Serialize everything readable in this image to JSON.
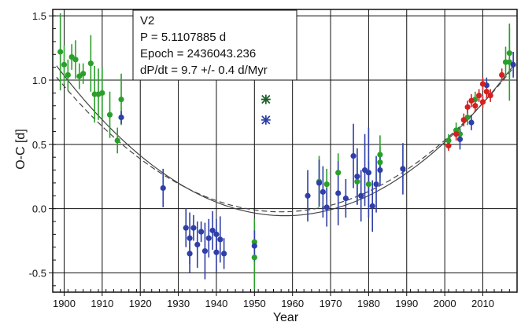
{
  "chart_data": {
    "type": "scatter",
    "title": "",
    "xlabel": "Year",
    "ylabel": "O-C [d]",
    "xlim": [
      1897,
      2019
    ],
    "ylim": [
      -0.65,
      1.55
    ],
    "grid": true,
    "x_ticks": [
      1900,
      1910,
      1920,
      1930,
      1940,
      1950,
      1960,
      1970,
      1980,
      1990,
      2000,
      2010
    ],
    "y_ticks": [
      -0.5,
      0.0,
      0.5,
      1.0,
      1.5
    ],
    "y_tick_labels": [
      "-0.5",
      "0.0",
      "0.5",
      "1.0",
      "1.5"
    ],
    "info_box": {
      "lines": [
        "V2",
        "P = 5.1107885 d",
        "Epoch = 2436043.236",
        "dP/dt = 9.7 +/- 0.4 d/Myr"
      ]
    },
    "colors": {
      "green": "#2aa02a",
      "blue": "#2f3fa8",
      "red": "#d42020",
      "dark_green": "#1d5e2a",
      "grid": "#111111",
      "fit": "#444444"
    },
    "fits": [
      {
        "style": "solid",
        "vertex_x": 1958,
        "vertex_y": -0.055,
        "curvature": 0.000324
      },
      {
        "style": "dashed",
        "vertex_x": 1957,
        "vertex_y": -0.025,
        "curvature": 0.000301
      }
    ],
    "series": [
      {
        "color": "green",
        "points": [
          {
            "x": 1899,
            "y": 1.22,
            "err": 0.3
          },
          {
            "x": 1900,
            "y": 1.12,
            "err": 0.15
          },
          {
            "x": 1901,
            "y": 1.04,
            "err": 0.12
          },
          {
            "x": 1902,
            "y": 1.18,
            "err": 0.1
          },
          {
            "x": 1903,
            "y": 1.16,
            "err": 0.15
          },
          {
            "x": 1904,
            "y": 1.03,
            "err": 0.1
          },
          {
            "x": 1905,
            "y": 1.05,
            "err": 0.08
          },
          {
            "x": 1907,
            "y": 1.13,
            "err": 0.22
          },
          {
            "x": 1908,
            "y": 0.89,
            "err": 0.22
          },
          {
            "x": 1909,
            "y": 0.89,
            "err": 0.2
          },
          {
            "x": 1910,
            "y": 0.9,
            "err": 0.2
          },
          {
            "x": 1912,
            "y": 0.73,
            "err": 0.18
          },
          {
            "x": 1914,
            "y": 0.53,
            "err": 0.1
          },
          {
            "x": 1915,
            "y": 0.85,
            "err": 0.2
          },
          {
            "x": 1950,
            "y": -0.26,
            "err": 0.18
          },
          {
            "x": 1950,
            "y": -0.38,
            "err": 0.25
          },
          {
            "x": 1967,
            "y": 0.21,
            "err": 0.2
          },
          {
            "x": 1969,
            "y": 0.19,
            "err": 0.12
          },
          {
            "x": 1972,
            "y": 0.28,
            "err": 0.15
          },
          {
            "x": 1977,
            "y": 0.21,
            "err": 0.18
          },
          {
            "x": 1980,
            "y": 0.19,
            "err": 0.18
          },
          {
            "x": 1983,
            "y": 0.42,
            "err": 0.15
          },
          {
            "x": 1983,
            "y": 0.36,
            "err": 0.12
          },
          {
            "x": 2001,
            "y": 0.53,
            "err": 0.05
          },
          {
            "x": 2003,
            "y": 0.61,
            "err": 0.06
          },
          {
            "x": 2004,
            "y": 0.58,
            "err": 0.06
          },
          {
            "x": 2006,
            "y": 0.71,
            "err": 0.06
          },
          {
            "x": 2008,
            "y": 0.85,
            "err": 0.06
          },
          {
            "x": 2016,
            "y": 1.14,
            "err": 0.12
          },
          {
            "x": 2017,
            "y": 1.21,
            "err": 0.2
          },
          {
            "x": 2017,
            "y": 1.14,
            "err": 0.3
          }
        ]
      },
      {
        "color": "blue",
        "points": [
          {
            "x": 1915,
            "y": 0.71,
            "err": 0.05
          },
          {
            "x": 1926,
            "y": 0.16,
            "err": 0.15
          },
          {
            "x": 1932,
            "y": -0.15,
            "err": 0.15
          },
          {
            "x": 1933,
            "y": -0.35,
            "err": 0.15
          },
          {
            "x": 1933,
            "y": -0.23,
            "err": 0.2
          },
          {
            "x": 1934,
            "y": -0.15,
            "err": 0.1
          },
          {
            "x": 1935,
            "y": -0.28,
            "err": 0.18
          },
          {
            "x": 1936,
            "y": -0.18,
            "err": 0.08
          },
          {
            "x": 1937,
            "y": -0.33,
            "err": 0.22
          },
          {
            "x": 1938,
            "y": -0.23,
            "err": 0.15
          },
          {
            "x": 1939,
            "y": -0.17,
            "err": 0.15
          },
          {
            "x": 1940,
            "y": -0.2,
            "err": 0.12
          },
          {
            "x": 1940,
            "y": -0.34,
            "err": 0.15
          },
          {
            "x": 1941,
            "y": -0.24,
            "err": 0.18
          },
          {
            "x": 1942,
            "y": -0.35,
            "err": 0.12
          },
          {
            "x": 1950,
            "y": -0.29,
            "err": 0.12
          },
          {
            "x": 1964,
            "y": 0.1,
            "err": 0.2
          },
          {
            "x": 1967,
            "y": 0.2,
            "err": 0.18
          },
          {
            "x": 1968,
            "y": 0.13,
            "err": 0.2
          },
          {
            "x": 1969,
            "y": 0.01,
            "err": 0.15
          },
          {
            "x": 1972,
            "y": 0.12,
            "err": 0.25
          },
          {
            "x": 1974,
            "y": 0.08,
            "err": 0.15
          },
          {
            "x": 1976,
            "y": 0.41,
            "err": 0.25
          },
          {
            "x": 1977,
            "y": 0.25,
            "err": 0.22
          },
          {
            "x": 1978,
            "y": 0.1,
            "err": 0.2
          },
          {
            "x": 1979,
            "y": 0.3,
            "err": 0.28
          },
          {
            "x": 1980,
            "y": 0.28,
            "err": 0.35
          },
          {
            "x": 1981,
            "y": 0.02,
            "err": 0.2
          },
          {
            "x": 1982,
            "y": 0.19,
            "err": 0.22
          },
          {
            "x": 1983,
            "y": 0.3,
            "err": 0.12
          },
          {
            "x": 1989,
            "y": 0.31,
            "err": 0.2
          },
          {
            "x": 2004,
            "y": 0.54,
            "err": 0.08
          },
          {
            "x": 2007,
            "y": 0.67,
            "err": 0.06
          },
          {
            "x": 2011,
            "y": 0.96,
            "err": 0.06
          },
          {
            "x": 2018,
            "y": 1.12,
            "err": 0.1
          }
        ]
      },
      {
        "color": "red",
        "points": [
          {
            "x": 2001,
            "y": 0.49,
            "err": 0.04
          },
          {
            "x": 2003,
            "y": 0.58,
            "err": 0.05
          },
          {
            "x": 2005,
            "y": 0.69,
            "err": 0.05
          },
          {
            "x": 2006,
            "y": 0.79,
            "err": 0.05
          },
          {
            "x": 2007,
            "y": 0.84,
            "err": 0.05
          },
          {
            "x": 2008,
            "y": 0.8,
            "err": 0.05
          },
          {
            "x": 2009,
            "y": 0.88,
            "err": 0.05
          },
          {
            "x": 2010,
            "y": 0.83,
            "err": 0.05
          },
          {
            "x": 2010,
            "y": 0.97,
            "err": 0.05
          },
          {
            "x": 2011,
            "y": 0.91,
            "err": 0.05
          },
          {
            "x": 2012,
            "y": 0.88,
            "err": 0.05
          },
          {
            "x": 2015,
            "y": 1.04,
            "err": 0.05
          }
        ]
      },
      {
        "color": "dark_green",
        "marker": "star",
        "points": [
          {
            "x": 1953,
            "y": 0.85,
            "err": 0.05
          }
        ]
      },
      {
        "color": "blue",
        "marker": "star",
        "points": [
          {
            "x": 1953,
            "y": 0.69,
            "err": 0.05
          }
        ]
      }
    ]
  }
}
